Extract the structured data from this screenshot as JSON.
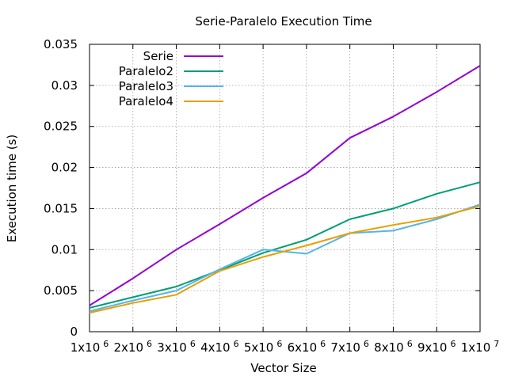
{
  "chart_data": {
    "type": "line",
    "title": "Serie-Paralelo Execution Time",
    "xlabel": "Vector Size",
    "ylabel": "Execution time (s)",
    "x": [
      1000000,
      2000000,
      3000000,
      4000000,
      5000000,
      6000000,
      7000000,
      8000000,
      9000000,
      10000000
    ],
    "xlim": [
      1000000,
      10000000
    ],
    "ylim": [
      0,
      0.035
    ],
    "x_ticks": [
      {
        "base": "1x10",
        "exp": "6"
      },
      {
        "base": "2x10",
        "exp": "6"
      },
      {
        "base": "3x10",
        "exp": "6"
      },
      {
        "base": "4x10",
        "exp": "6"
      },
      {
        "base": "5x10",
        "exp": "6"
      },
      {
        "base": "6x10",
        "exp": "6"
      },
      {
        "base": "7x10",
        "exp": "6"
      },
      {
        "base": "8x10",
        "exp": "6"
      },
      {
        "base": "9x10",
        "exp": "6"
      },
      {
        "base": "1x10",
        "exp": "7"
      }
    ],
    "y_ticks": [
      {
        "value": 0,
        "label": "0"
      },
      {
        "value": 0.005,
        "label": "0.005"
      },
      {
        "value": 0.01,
        "label": "0.01"
      },
      {
        "value": 0.015,
        "label": "0.015"
      },
      {
        "value": 0.02,
        "label": "0.02"
      },
      {
        "value": 0.025,
        "label": "0.025"
      },
      {
        "value": 0.03,
        "label": "0.03"
      },
      {
        "value": 0.035,
        "label": "0.035"
      }
    ],
    "grid": true,
    "legend_position": "top-left",
    "series": [
      {
        "name": "Serie",
        "color": "#9400d3",
        "values": [
          0.0032,
          0.0065,
          0.01,
          0.0131,
          0.0163,
          0.0193,
          0.0236,
          0.0262,
          0.0292,
          0.0324
        ]
      },
      {
        "name": "Paralelo2",
        "color": "#009e73",
        "values": [
          0.0029,
          0.0042,
          0.0055,
          0.0075,
          0.0096,
          0.0112,
          0.0137,
          0.015,
          0.0168,
          0.0182
        ]
      },
      {
        "name": "Paralelo3",
        "color": "#56b4e9",
        "values": [
          0.0025,
          0.0038,
          0.005,
          0.0076,
          0.01,
          0.0095,
          0.012,
          0.0123,
          0.0137,
          0.0155
        ]
      },
      {
        "name": "Paralelo4",
        "color": "#e69f00",
        "values": [
          0.0023,
          0.0035,
          0.0045,
          0.0074,
          0.0091,
          0.0105,
          0.012,
          0.013,
          0.0139,
          0.0153
        ]
      }
    ]
  }
}
